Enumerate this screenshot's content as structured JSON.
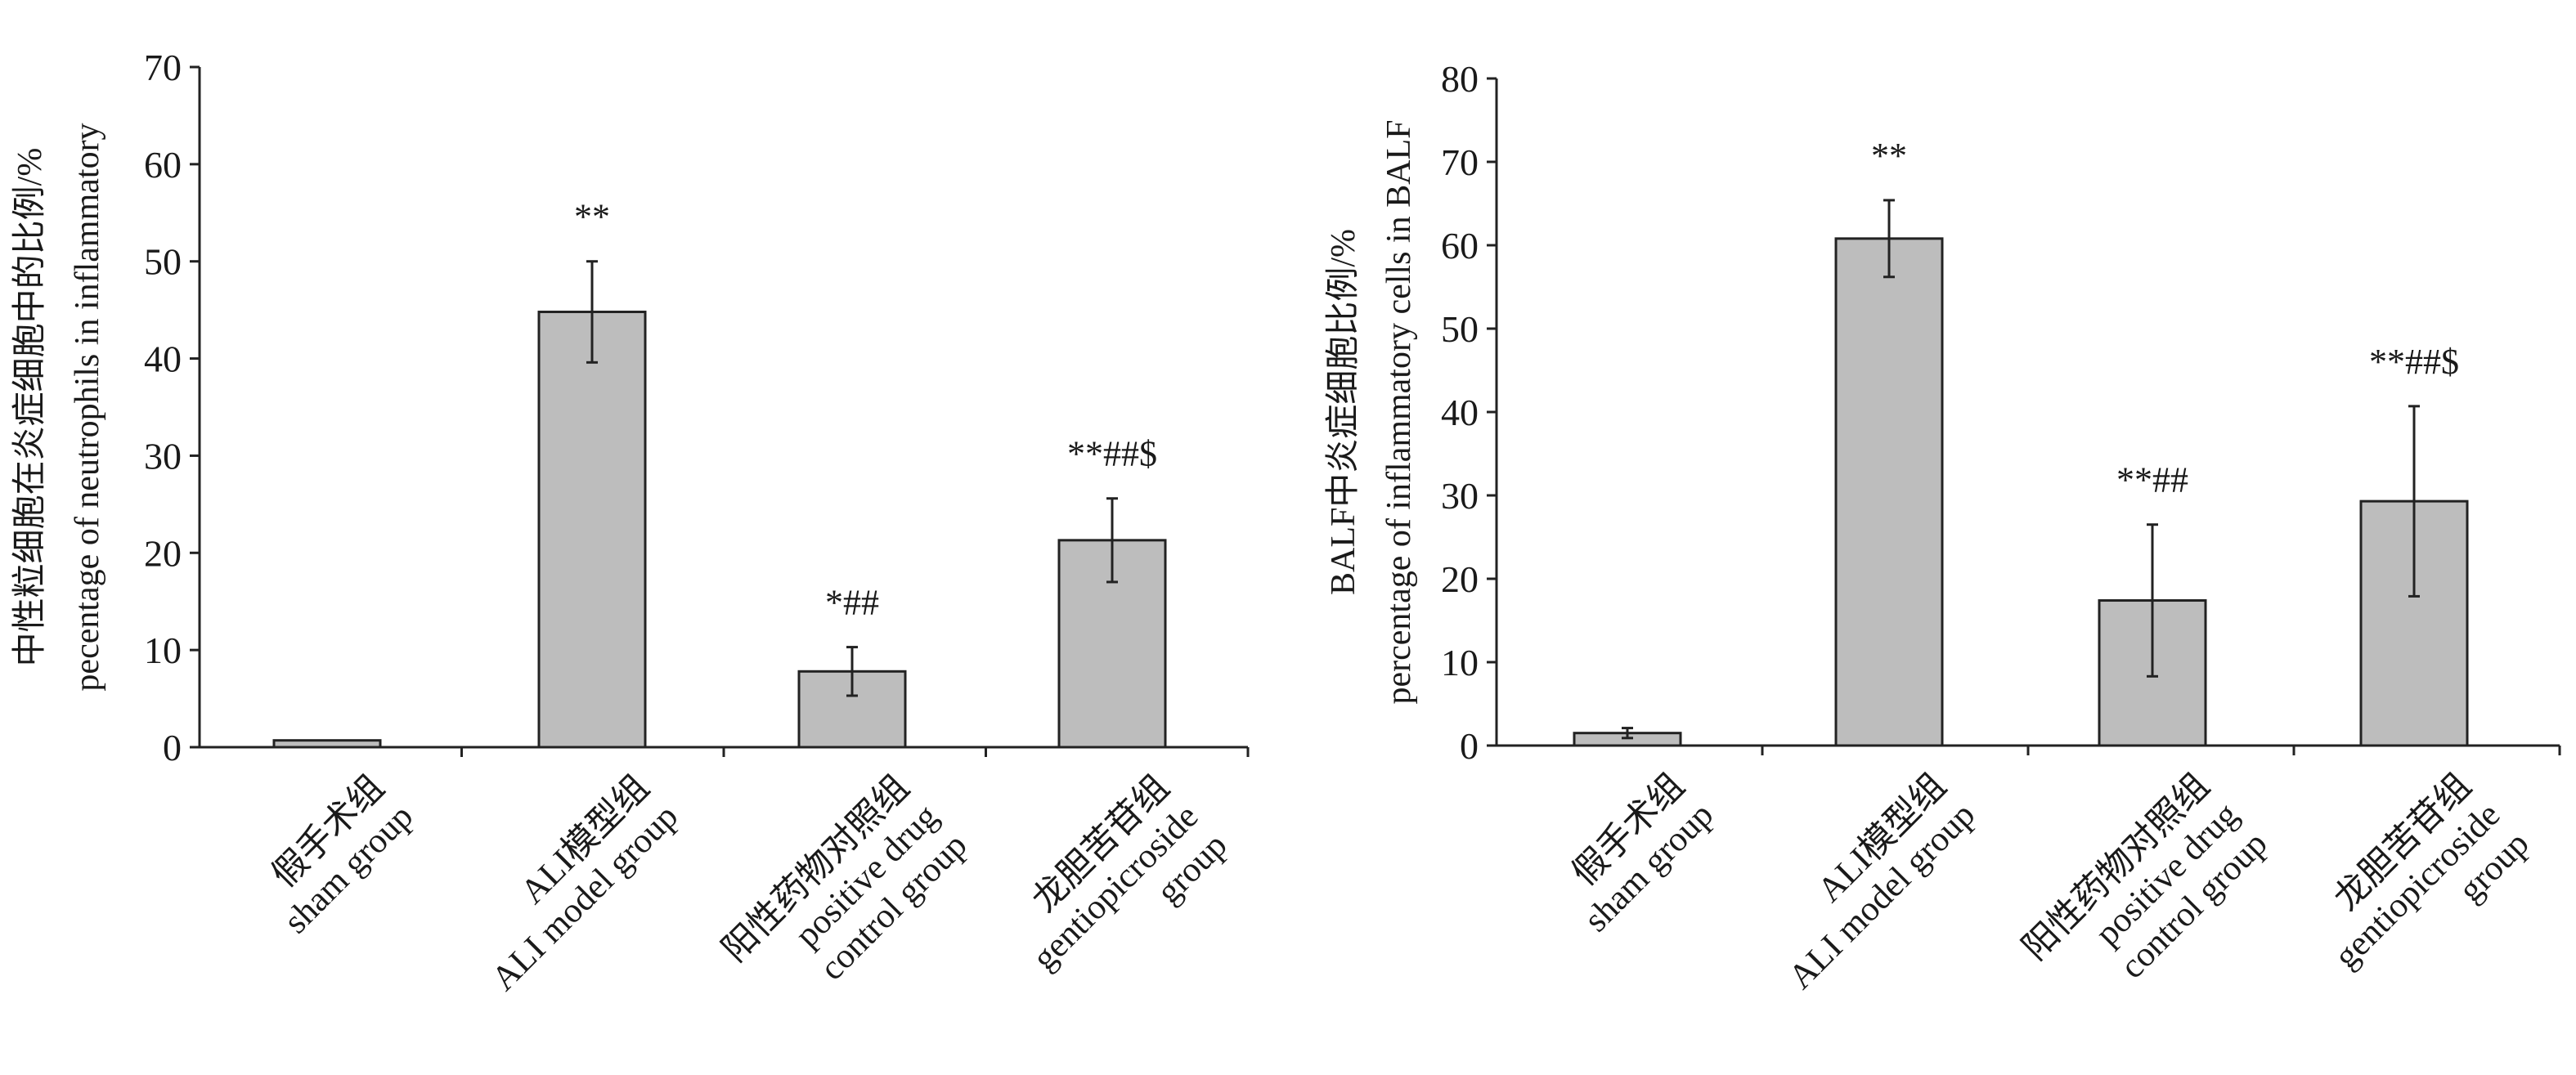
{
  "chart_data": [
    {
      "type": "bar",
      "title": "",
      "xlabel": "",
      "ylabel": [
        "中性粒细胞在炎症细胞中的比例/%",
        "pecentage of neutrophils in inflammatory"
      ],
      "ylim": [
        0,
        70
      ],
      "yticks": [
        0,
        10,
        20,
        30,
        40,
        50,
        60,
        70
      ],
      "categories": [
        [
          "假手术组",
          "sham group"
        ],
        [
          "ALI模型组",
          "ALI model group"
        ],
        [
          "阳性药物对照组",
          "positive drug",
          "control group"
        ],
        [
          "龙胆苦苷组",
          "gentiopicroside",
          "group"
        ]
      ],
      "values": [
        0.7,
        44.8,
        7.8,
        21.3
      ],
      "errors": [
        0,
        5.2,
        2.5,
        4.3
      ],
      "annotations": [
        "",
        "**",
        "*##",
        "**##$"
      ],
      "bar_color": "#bdbdbd",
      "grid": false,
      "legend": "none"
    },
    {
      "type": "bar",
      "title": "",
      "xlabel": "",
      "ylabel": [
        "BALF中炎症细胞比例/%",
        "percentage of inflammatory cells in BALF"
      ],
      "ylim": [
        0,
        80
      ],
      "yticks": [
        0,
        10,
        20,
        30,
        40,
        50,
        60,
        70,
        80
      ],
      "categories": [
        [
          "假手术组",
          "sham group"
        ],
        [
          "ALI模型组",
          "ALI model group"
        ],
        [
          "阳性药物对照组",
          "positive drug",
          "control group"
        ],
        [
          "龙胆苦苷组",
          "gentiopicroside",
          "group"
        ]
      ],
      "values": [
        1.5,
        60.8,
        17.4,
        29.3
      ],
      "errors": [
        0.6,
        4.6,
        9.1,
        11.4
      ],
      "annotations": [
        "",
        "**",
        "**##",
        "**##$"
      ],
      "bar_color": "#bdbdbd",
      "grid": false,
      "legend": "none"
    }
  ]
}
